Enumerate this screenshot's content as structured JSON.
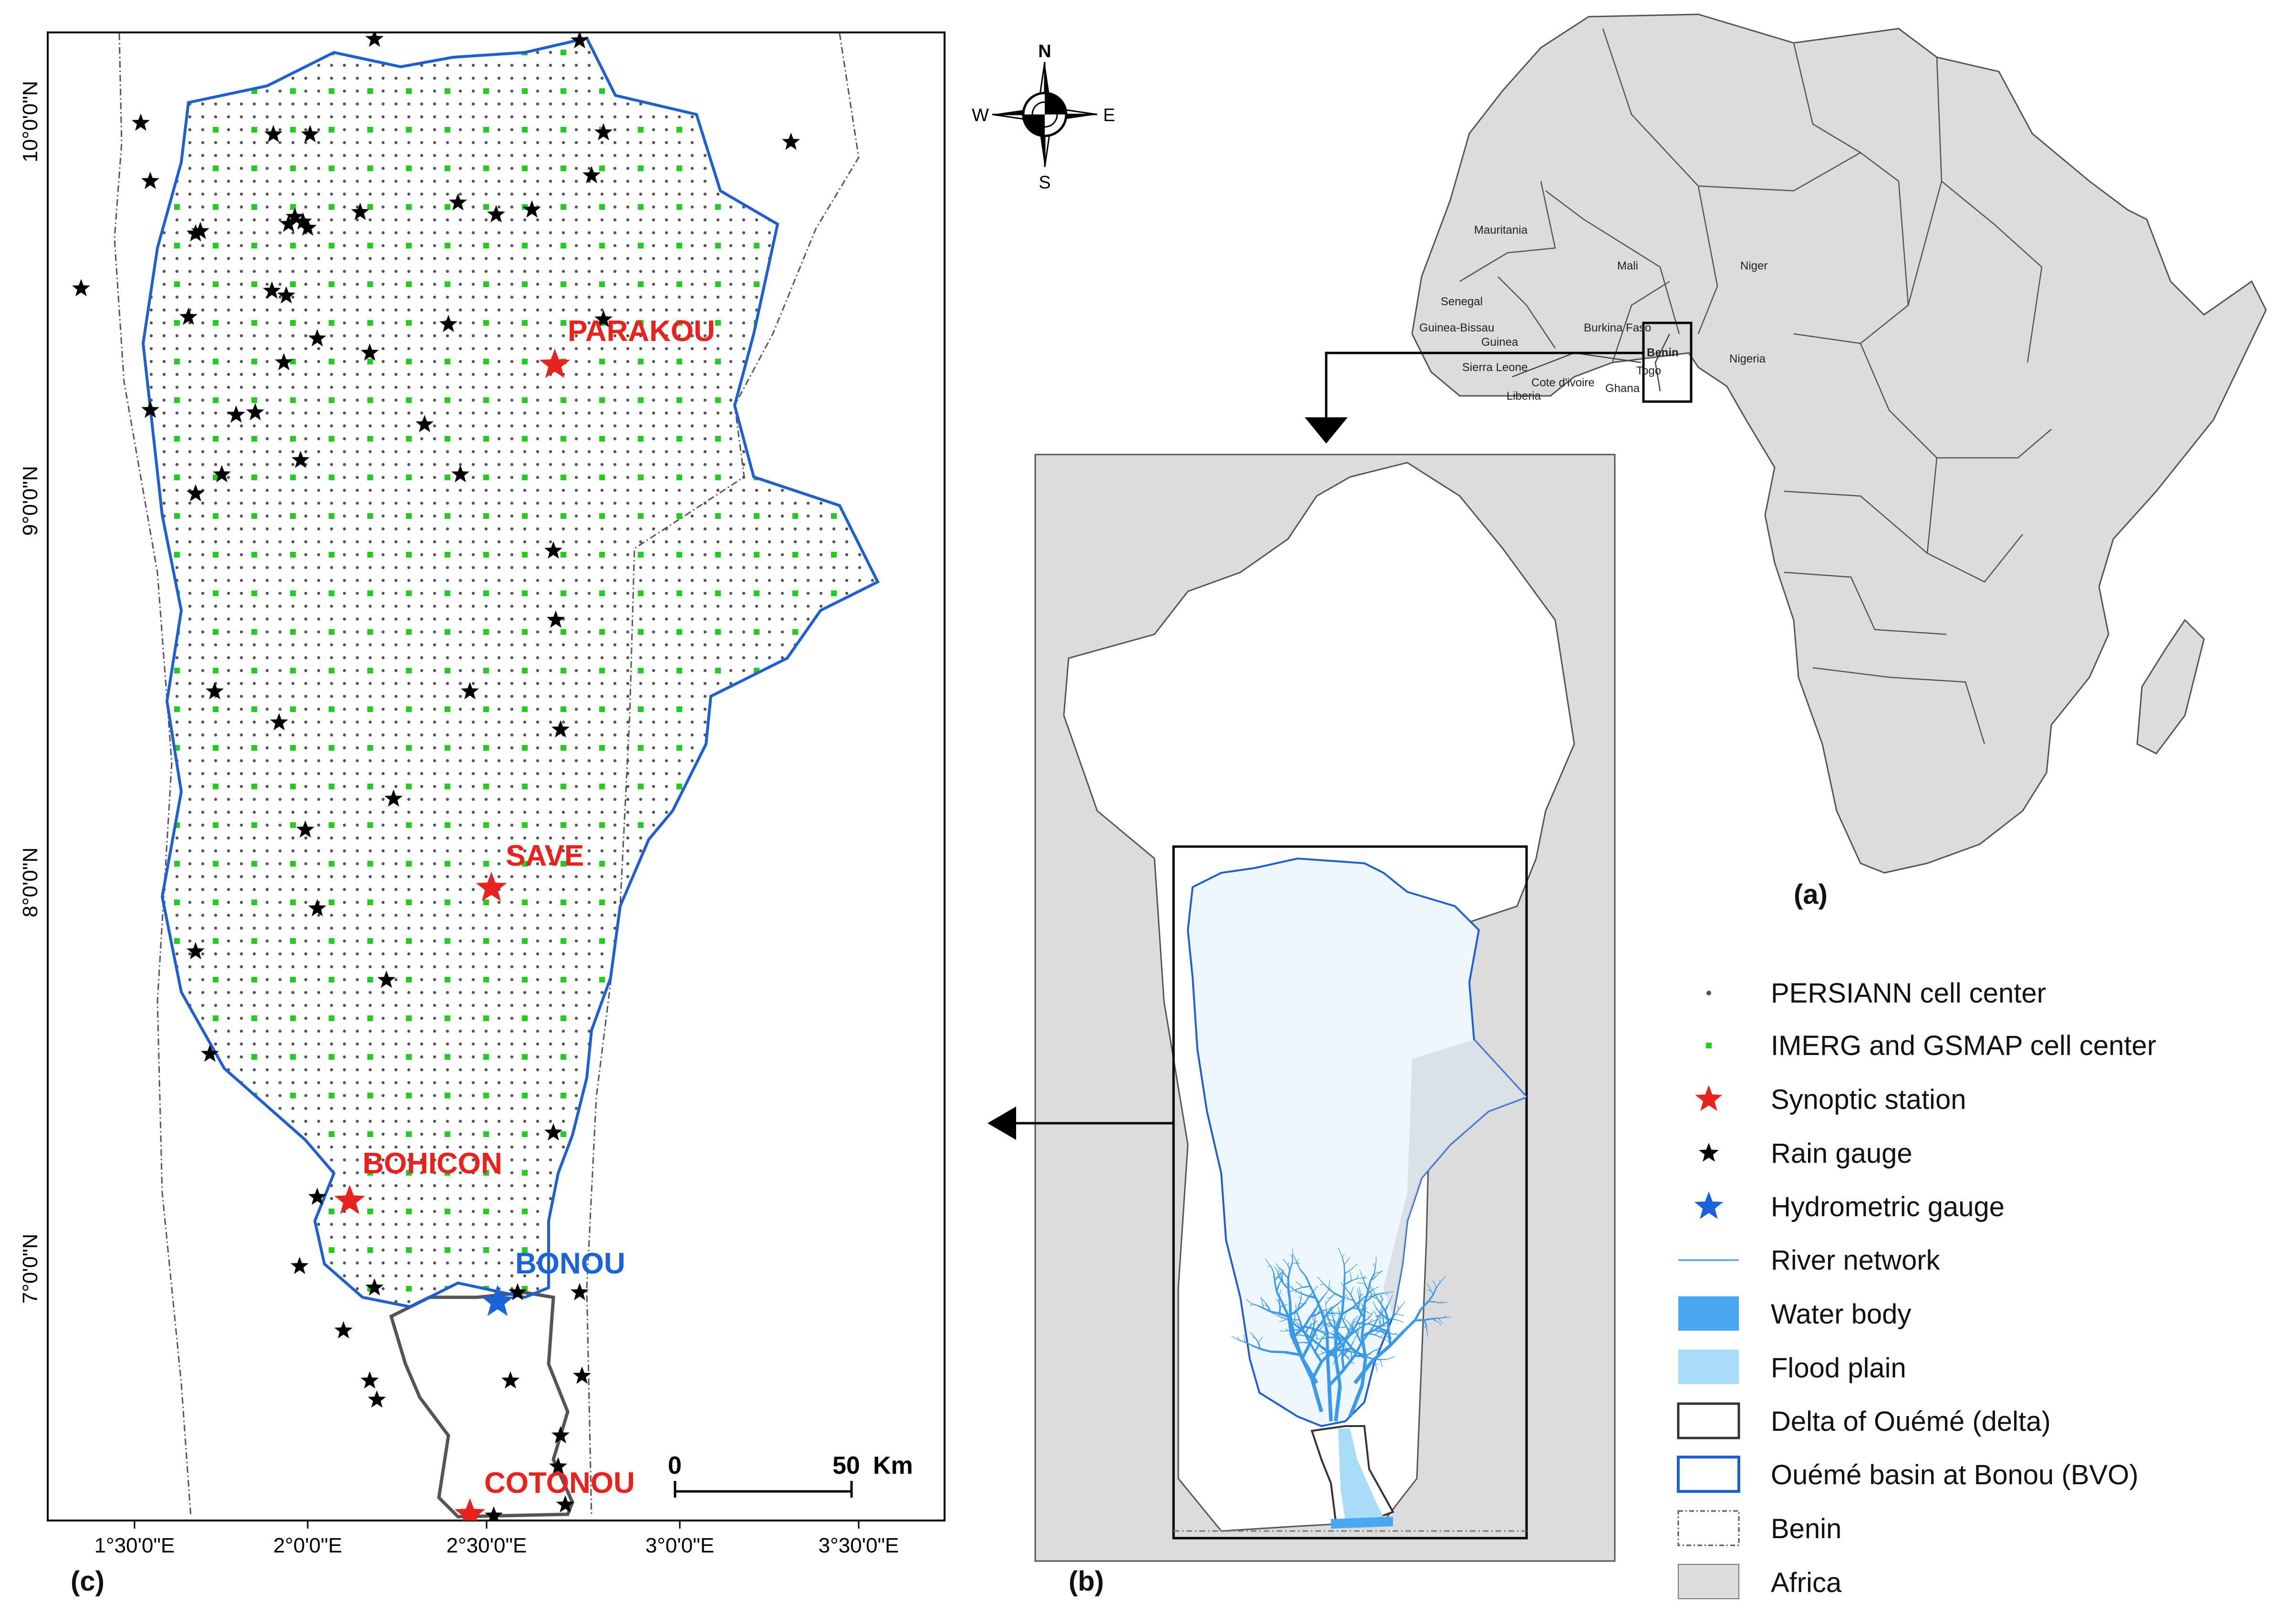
{
  "panels": {
    "a": "(a)",
    "b": "(b)",
    "c": "(c)"
  },
  "compass": {
    "n": "N",
    "s": "S",
    "e": "E",
    "w": "W"
  },
  "axis_x": [
    "1°30'0\"E",
    "2°0'0\"E",
    "2°30'0\"E",
    "3°0'0\"E",
    "3°30'0\"E"
  ],
  "axis_y": [
    "10°0'0\"N",
    "9°0'0\"N",
    "8°0'0\"N",
    "7°0'0\"N"
  ],
  "cities": {
    "parakou": "PARAKOU",
    "save": "SAVE",
    "bohicon": "BOHICON",
    "bonou": "BONOU",
    "cotonou": "COTONOU"
  },
  "scale": {
    "zero": "0",
    "fifty": "50",
    "unit": "Km"
  },
  "countries": [
    "Mauritania",
    "Mali",
    "Niger",
    "Senegal",
    "Guinea-Bissau",
    "Guinea",
    "Burkina Faso",
    "Benin",
    "Nigeria",
    "Sierra Leone",
    "Cote d'ivoire",
    "Togo",
    "Ghana",
    "Liberia"
  ],
  "legend": [
    {
      "key": "persiann",
      "label": "PERSIANN cell center"
    },
    {
      "key": "imerg",
      "label": "IMERG and GSMAP cell center"
    },
    {
      "key": "synoptic",
      "label": "Synoptic station"
    },
    {
      "key": "raingauge",
      "label": "Rain gauge"
    },
    {
      "key": "hydro",
      "label": "Hydrometric gauge"
    },
    {
      "key": "river",
      "label": "River network"
    },
    {
      "key": "water",
      "label": "Water body"
    },
    {
      "key": "flood",
      "label": "Flood plain"
    },
    {
      "key": "delta",
      "label": "Delta  of Ouémé (delta)"
    },
    {
      "key": "bvo",
      "label": "Ouémé basin at Bonou (BVO)"
    },
    {
      "key": "benin",
      "label": "Benin"
    },
    {
      "key": "africa",
      "label": "Africa"
    }
  ],
  "colors": {
    "basin_blue": "#1f5fcf",
    "synoptic_red": "#e8231f",
    "hydro_blue": "#1a63d8",
    "grid_green": "#22cc22",
    "africa_gray": "#dcdcdc",
    "water_blue": "#4aa8f0",
    "flood_blue": "#a8dcf8",
    "river_blue": "#3a9ae8"
  }
}
